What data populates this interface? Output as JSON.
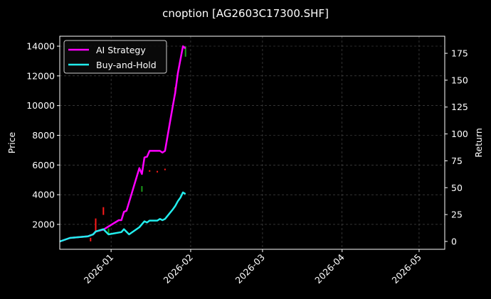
{
  "chart_data": {
    "type": "line",
    "title": "cnoption [AG2603C17300.SHF]",
    "xlabel": "",
    "ylabel_left": "Price",
    "ylabel_right": "Return",
    "xlim": [
      "2025-12-12",
      "2026-05-11"
    ],
    "ylim_left": [
      325,
      14670
    ],
    "ylim_right": [
      -7.3,
      190.9
    ],
    "x_ticks": [
      "2026-01",
      "2026-02",
      "2026-03",
      "2026-04",
      "2026-05"
    ],
    "x_tick_dates": [
      "2026-01-01",
      "2026-02-01",
      "2026-03-01",
      "2026-04-01",
      "2026-05-01"
    ],
    "y_ticks_left": [
      2000,
      4000,
      6000,
      8000,
      10000,
      12000,
      14000
    ],
    "y_ticks_right": [
      0,
      25,
      50,
      75,
      100,
      125,
      150,
      175
    ],
    "grid": true,
    "legend_position": "top-left",
    "series": [
      {
        "name": "AI Strategy",
        "axis": "right",
        "color": "#ff00ff",
        "points": [
          [
            "2025-12-12",
            0
          ],
          [
            "2025-12-16",
            3.3
          ],
          [
            "2025-12-23",
            4.8
          ],
          [
            "2025-12-25",
            6.6
          ],
          [
            "2025-12-26",
            9.2
          ],
          [
            "2025-12-29",
            11
          ],
          [
            "2026-01-04",
            19.8
          ],
          [
            "2026-01-05",
            19.8
          ],
          [
            "2026-01-06",
            27.5
          ],
          [
            "2026-01-07",
            28.6
          ],
          [
            "2026-01-12",
            68.2
          ],
          [
            "2026-01-13",
            62.7
          ],
          [
            "2026-01-14",
            78.1
          ],
          [
            "2026-01-15",
            78.8
          ],
          [
            "2026-01-16",
            84.3
          ],
          [
            "2026-01-20",
            84.3
          ],
          [
            "2026-01-21",
            82.6
          ],
          [
            "2026-01-22",
            84.3
          ],
          [
            "2026-01-25",
            125.5
          ],
          [
            "2026-01-26",
            138.7
          ],
          [
            "2026-01-27",
            156.3
          ],
          [
            "2026-01-29",
            181.6
          ],
          [
            "2026-01-30",
            179.5
          ]
        ]
      },
      {
        "name": "Buy-and-Hold",
        "axis": "right",
        "color": "#22eeee",
        "points": [
          [
            "2025-12-12",
            0
          ],
          [
            "2025-12-16",
            3.3
          ],
          [
            "2025-12-23",
            4.8
          ],
          [
            "2025-12-25",
            6.6
          ],
          [
            "2025-12-26",
            9.2
          ],
          [
            "2025-12-29",
            11.4
          ],
          [
            "2025-12-31",
            6.6
          ],
          [
            "2026-01-05",
            8.7
          ],
          [
            "2026-01-06",
            11.4
          ],
          [
            "2026-01-08",
            6.6
          ],
          [
            "2026-01-12",
            13.2
          ],
          [
            "2026-01-14",
            18.7
          ],
          [
            "2026-01-15",
            17.6
          ],
          [
            "2026-01-16",
            19.4
          ],
          [
            "2026-01-19",
            19.4
          ],
          [
            "2026-01-20",
            20.9
          ],
          [
            "2026-01-21",
            19.8
          ],
          [
            "2026-01-22",
            20.9
          ],
          [
            "2026-01-25",
            29.7
          ],
          [
            "2026-01-26",
            33
          ],
          [
            "2026-01-27",
            37.4
          ],
          [
            "2026-01-28",
            40.7
          ],
          [
            "2026-01-29",
            45.6
          ],
          [
            "2026-01-30",
            44.1
          ]
        ]
      }
    ],
    "candles": {
      "axis": "left",
      "up_color": "#1a9a1a",
      "down_color": "#ff1a1a",
      "items": [
        {
          "date": "2025-12-24",
          "open": 1100,
          "close": 860,
          "dir": "down"
        },
        {
          "date": "2025-12-26",
          "open": 2400,
          "close": 1570,
          "dir": "down"
        },
        {
          "date": "2025-12-29",
          "open": 3160,
          "close": 2640,
          "dir": "down"
        },
        {
          "date": "2025-12-31",
          "open": 1330,
          "close": 1730,
          "dir": "up"
        },
        {
          "date": "2026-01-13",
          "open": 4200,
          "close": 4580,
          "dir": "up"
        },
        {
          "date": "2026-01-16",
          "open": 5650,
          "close": 5550,
          "dir": "down"
        },
        {
          "date": "2026-01-19",
          "open": 5600,
          "close": 5500,
          "dir": "down"
        },
        {
          "date": "2026-01-22",
          "open": 5750,
          "close": 5650,
          "dir": "down"
        },
        {
          "date": "2026-01-26",
          "open": 11230,
          "close": 10760,
          "dir": "down"
        },
        {
          "date": "2026-01-30",
          "open": 13290,
          "close": 14000,
          "dir": "up"
        }
      ]
    }
  }
}
